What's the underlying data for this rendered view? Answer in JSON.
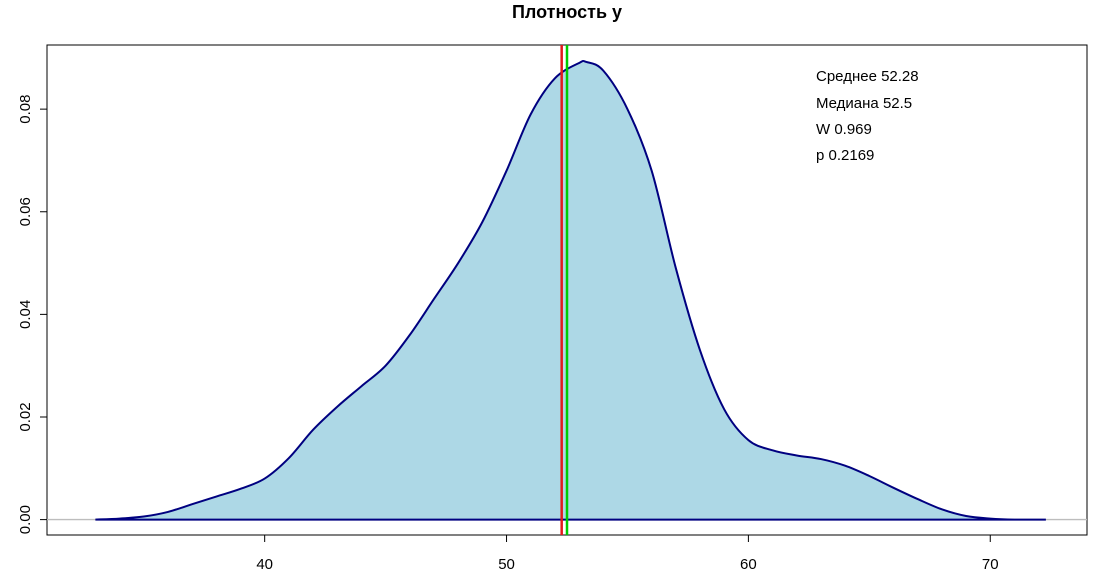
{
  "chart_data": {
    "type": "area",
    "title": "Плотность у",
    "xlabel": "",
    "ylabel": "",
    "xlim": [
      31,
      74
    ],
    "ylim": [
      -0.003,
      0.0925
    ],
    "x_ticks": [
      40,
      50,
      60,
      70
    ],
    "y_ticks": [
      0.0,
      0.02,
      0.04,
      0.06,
      0.08
    ],
    "y_tick_labels": [
      "0.00",
      "0.02",
      "0.04",
      "0.06",
      "0.08"
    ],
    "grid": false,
    "series": [
      {
        "x": [
          33,
          34,
          35,
          36,
          37,
          38,
          39,
          40,
          41,
          42,
          43,
          44,
          45,
          46,
          47,
          48,
          49,
          50,
          51,
          52,
          53,
          53.3,
          54,
          55,
          56,
          57,
          58,
          59,
          60,
          61,
          62,
          63,
          64,
          65,
          66,
          67,
          68,
          69,
          70,
          71,
          72.3
        ],
        "values": [
          0.0,
          0.0002,
          0.0006,
          0.0015,
          0.003,
          0.0045,
          0.006,
          0.008,
          0.012,
          0.0175,
          0.022,
          0.026,
          0.03,
          0.036,
          0.043,
          0.05,
          0.058,
          0.068,
          0.079,
          0.086,
          0.089,
          0.0892,
          0.0875,
          0.08,
          0.068,
          0.049,
          0.033,
          0.0215,
          0.0155,
          0.0135,
          0.0125,
          0.0118,
          0.0105,
          0.0085,
          0.0062,
          0.004,
          0.002,
          0.0007,
          0.0002,
          0.0,
          0.0
        ],
        "fill_color": "#add8e6",
        "line_color": "#000080"
      }
    ],
    "vertical_lines": [
      {
        "x": 52.28,
        "color": "#e31a1c"
      },
      {
        "x": 52.5,
        "color": "#00cc00"
      }
    ],
    "annotations": [
      "Среднее 52.28",
      "Медиана 52.5",
      "W 0.969",
      "p 0.2169"
    ]
  }
}
